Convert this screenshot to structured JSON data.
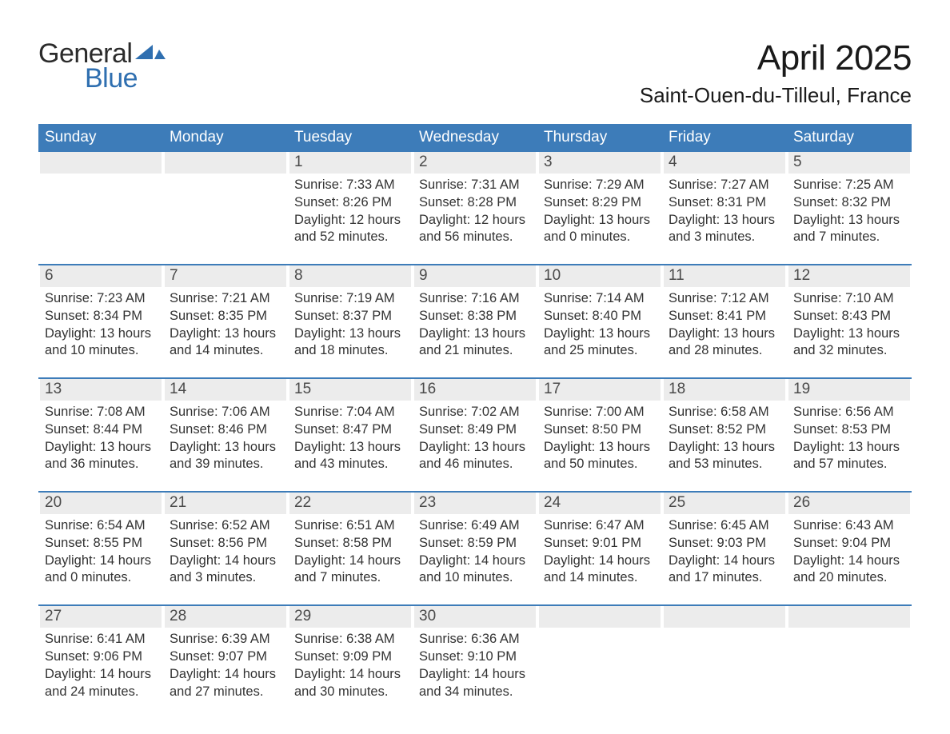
{
  "brand": {
    "top": "General",
    "bottom": "Blue",
    "top_color": "#2b2b2b",
    "bottom_color": "#2f6fb0",
    "shape_color": "#2f6fb0"
  },
  "title": "April 2025",
  "location": "Saint-Ouen-du-Tilleul, France",
  "colors": {
    "header_bg": "#3d7cb9",
    "header_text": "#ffffff",
    "row_separator": "#3d7cb9",
    "daynum_bg": "#ececec",
    "text": "#333333",
    "background": "#ffffff"
  },
  "fonts": {
    "title_size": 44,
    "location_size": 26,
    "header_size": 19,
    "daynum_size": 19,
    "body_size": 16.5
  },
  "weekday_headers": [
    "Sunday",
    "Monday",
    "Tuesday",
    "Wednesday",
    "Thursday",
    "Friday",
    "Saturday"
  ],
  "labels": {
    "sunrise": "Sunrise: ",
    "sunset": "Sunset: ",
    "daylight": "Daylight: "
  },
  "weeks": [
    [
      null,
      null,
      {
        "n": "1",
        "sunrise": "7:33 AM",
        "sunset": "8:26 PM",
        "daylight": "12 hours and 52 minutes."
      },
      {
        "n": "2",
        "sunrise": "7:31 AM",
        "sunset": "8:28 PM",
        "daylight": "12 hours and 56 minutes."
      },
      {
        "n": "3",
        "sunrise": "7:29 AM",
        "sunset": "8:29 PM",
        "daylight": "13 hours and 0 minutes."
      },
      {
        "n": "4",
        "sunrise": "7:27 AM",
        "sunset": "8:31 PM",
        "daylight": "13 hours and 3 minutes."
      },
      {
        "n": "5",
        "sunrise": "7:25 AM",
        "sunset": "8:32 PM",
        "daylight": "13 hours and 7 minutes."
      }
    ],
    [
      {
        "n": "6",
        "sunrise": "7:23 AM",
        "sunset": "8:34 PM",
        "daylight": "13 hours and 10 minutes."
      },
      {
        "n": "7",
        "sunrise": "7:21 AM",
        "sunset": "8:35 PM",
        "daylight": "13 hours and 14 minutes."
      },
      {
        "n": "8",
        "sunrise": "7:19 AM",
        "sunset": "8:37 PM",
        "daylight": "13 hours and 18 minutes."
      },
      {
        "n": "9",
        "sunrise": "7:16 AM",
        "sunset": "8:38 PM",
        "daylight": "13 hours and 21 minutes."
      },
      {
        "n": "10",
        "sunrise": "7:14 AM",
        "sunset": "8:40 PM",
        "daylight": "13 hours and 25 minutes."
      },
      {
        "n": "11",
        "sunrise": "7:12 AM",
        "sunset": "8:41 PM",
        "daylight": "13 hours and 28 minutes."
      },
      {
        "n": "12",
        "sunrise": "7:10 AM",
        "sunset": "8:43 PM",
        "daylight": "13 hours and 32 minutes."
      }
    ],
    [
      {
        "n": "13",
        "sunrise": "7:08 AM",
        "sunset": "8:44 PM",
        "daylight": "13 hours and 36 minutes."
      },
      {
        "n": "14",
        "sunrise": "7:06 AM",
        "sunset": "8:46 PM",
        "daylight": "13 hours and 39 minutes."
      },
      {
        "n": "15",
        "sunrise": "7:04 AM",
        "sunset": "8:47 PM",
        "daylight": "13 hours and 43 minutes."
      },
      {
        "n": "16",
        "sunrise": "7:02 AM",
        "sunset": "8:49 PM",
        "daylight": "13 hours and 46 minutes."
      },
      {
        "n": "17",
        "sunrise": "7:00 AM",
        "sunset": "8:50 PM",
        "daylight": "13 hours and 50 minutes."
      },
      {
        "n": "18",
        "sunrise": "6:58 AM",
        "sunset": "8:52 PM",
        "daylight": "13 hours and 53 minutes."
      },
      {
        "n": "19",
        "sunrise": "6:56 AM",
        "sunset": "8:53 PM",
        "daylight": "13 hours and 57 minutes."
      }
    ],
    [
      {
        "n": "20",
        "sunrise": "6:54 AM",
        "sunset": "8:55 PM",
        "daylight": "14 hours and 0 minutes."
      },
      {
        "n": "21",
        "sunrise": "6:52 AM",
        "sunset": "8:56 PM",
        "daylight": "14 hours and 3 minutes."
      },
      {
        "n": "22",
        "sunrise": "6:51 AM",
        "sunset": "8:58 PM",
        "daylight": "14 hours and 7 minutes."
      },
      {
        "n": "23",
        "sunrise": "6:49 AM",
        "sunset": "8:59 PM",
        "daylight": "14 hours and 10 minutes."
      },
      {
        "n": "24",
        "sunrise": "6:47 AM",
        "sunset": "9:01 PM",
        "daylight": "14 hours and 14 minutes."
      },
      {
        "n": "25",
        "sunrise": "6:45 AM",
        "sunset": "9:03 PM",
        "daylight": "14 hours and 17 minutes."
      },
      {
        "n": "26",
        "sunrise": "6:43 AM",
        "sunset": "9:04 PM",
        "daylight": "14 hours and 20 minutes."
      }
    ],
    [
      {
        "n": "27",
        "sunrise": "6:41 AM",
        "sunset": "9:06 PM",
        "daylight": "14 hours and 24 minutes."
      },
      {
        "n": "28",
        "sunrise": "6:39 AM",
        "sunset": "9:07 PM",
        "daylight": "14 hours and 27 minutes."
      },
      {
        "n": "29",
        "sunrise": "6:38 AM",
        "sunset": "9:09 PM",
        "daylight": "14 hours and 30 minutes."
      },
      {
        "n": "30",
        "sunrise": "6:36 AM",
        "sunset": "9:10 PM",
        "daylight": "14 hours and 34 minutes."
      },
      null,
      null,
      null
    ]
  ]
}
